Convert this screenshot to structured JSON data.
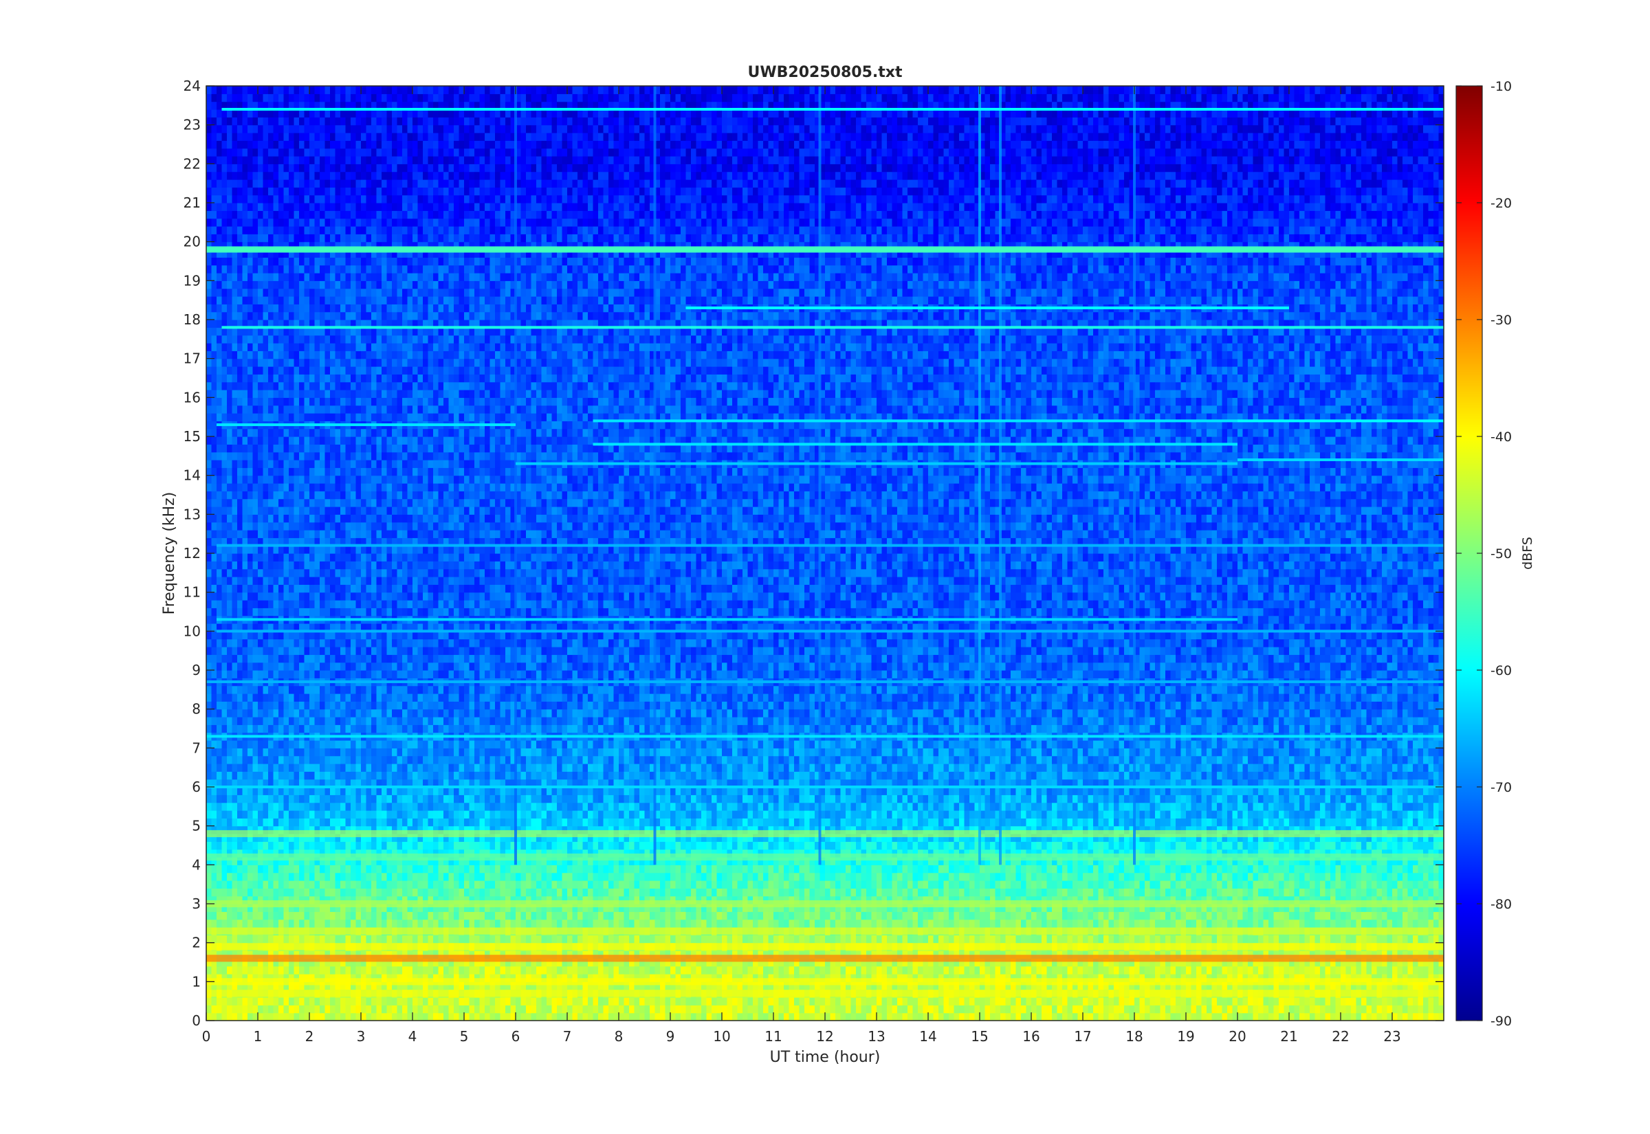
{
  "chart_data": {
    "type": "heatmap",
    "title": "UWB20250805.txt",
    "xlabel": "UT time (hour)",
    "ylabel": "Frequency (kHz)",
    "xlim": [
      0,
      24
    ],
    "ylim": [
      0,
      24
    ],
    "x_ticks": [
      "0",
      "1",
      "2",
      "3",
      "4",
      "5",
      "6",
      "7",
      "8",
      "9",
      "10",
      "11",
      "12",
      "13",
      "14",
      "15",
      "16",
      "17",
      "18",
      "19",
      "20",
      "21",
      "22",
      "23"
    ],
    "y_ticks": [
      "0",
      "1",
      "2",
      "3",
      "4",
      "5",
      "6",
      "7",
      "8",
      "9",
      "10",
      "11",
      "12",
      "13",
      "14",
      "15",
      "16",
      "17",
      "18",
      "19",
      "20",
      "21",
      "22",
      "23",
      "24"
    ],
    "colorbar": {
      "label": "dBFS",
      "range": [
        -90,
        -10
      ],
      "ticks": [
        "-90",
        "-80",
        "-70",
        "-60",
        "-50",
        "-40",
        "-30",
        "-20",
        "-10"
      ],
      "colormap": "jet"
    },
    "background_level_by_freq_khz": [
      {
        "f": 0,
        "dbfs": -44
      },
      {
        "f": 1,
        "dbfs": -44
      },
      {
        "f": 2,
        "dbfs": -46
      },
      {
        "f": 2.5,
        "dbfs": -50
      },
      {
        "f": 3,
        "dbfs": -52
      },
      {
        "f": 4,
        "dbfs": -57
      },
      {
        "f": 5,
        "dbfs": -64
      },
      {
        "f": 6,
        "dbfs": -68
      },
      {
        "f": 7,
        "dbfs": -69
      },
      {
        "f": 8,
        "dbfs": -71
      },
      {
        "f": 9,
        "dbfs": -72
      },
      {
        "f": 10,
        "dbfs": -73
      },
      {
        "f": 14,
        "dbfs": -73
      },
      {
        "f": 19,
        "dbfs": -74
      },
      {
        "f": 20.5,
        "dbfs": -77
      },
      {
        "f": 22,
        "dbfs": -80
      },
      {
        "f": 24,
        "dbfs": -80
      }
    ],
    "hot_bands": [
      {
        "f": 1.6,
        "dbfs": -30,
        "x_start": 0,
        "x_end": 24
      },
      {
        "f": 1.0,
        "dbfs": -40,
        "x_start": 0,
        "x_end": 24
      },
      {
        "f": 1.9,
        "dbfs": -40,
        "x_start": 0,
        "x_end": 24
      },
      {
        "f": 0.7,
        "dbfs": -41,
        "x_start": 0,
        "x_end": 24
      },
      {
        "f": 2.3,
        "dbfs": -43,
        "x_start": 0,
        "x_end": 24
      },
      {
        "f": 3.0,
        "dbfs": -46,
        "x_start": 0,
        "x_end": 24
      },
      {
        "f": 4.8,
        "dbfs": -48,
        "x_start": 0,
        "x_end": 24
      },
      {
        "f": 4.2,
        "dbfs": -52,
        "x_start": 0,
        "x_end": 24
      }
    ],
    "tonal_lines": [
      {
        "f": 19.8,
        "dbfs": -55,
        "x_start": 0,
        "x_end": 24
      },
      {
        "f": 18.3,
        "dbfs": -60,
        "x_start": 9.3,
        "x_end": 21
      },
      {
        "f": 17.8,
        "dbfs": -58,
        "x_start": 0.3,
        "x_end": 24
      },
      {
        "f": 23.4,
        "dbfs": -60,
        "x_start": 0.3,
        "x_end": 24
      },
      {
        "f": 15.3,
        "dbfs": -62,
        "x_start": 0.2,
        "x_end": 6
      },
      {
        "f": 15.4,
        "dbfs": -62,
        "x_start": 7.5,
        "x_end": 20
      },
      {
        "f": 15.4,
        "dbfs": -60,
        "x_start": 20,
        "x_end": 24
      },
      {
        "f": 14.8,
        "dbfs": -62,
        "x_start": 7.5,
        "x_end": 20
      },
      {
        "f": 14.4,
        "dbfs": -63,
        "x_start": 20,
        "x_end": 24
      },
      {
        "f": 14.3,
        "dbfs": -64,
        "x_start": 6,
        "x_end": 20
      },
      {
        "f": 12.2,
        "dbfs": -66,
        "x_start": 0.2,
        "x_end": 24
      },
      {
        "f": 10.3,
        "dbfs": -63,
        "x_start": 0.2,
        "x_end": 20
      },
      {
        "f": 10.0,
        "dbfs": -66,
        "x_start": 0.2,
        "x_end": 24
      },
      {
        "f": 8.7,
        "dbfs": -66,
        "x_start": 0,
        "x_end": 24
      },
      {
        "f": 7.3,
        "dbfs": -62,
        "x_start": 0,
        "x_end": 24
      },
      {
        "f": 6.0,
        "dbfs": -63,
        "x_start": 0,
        "x_end": 24
      }
    ],
    "vertical_features": [
      {
        "x": 15.0,
        "dbfs": -66
      },
      {
        "x": 15.4,
        "dbfs": -68
      },
      {
        "x": 11.9,
        "dbfs": -70
      },
      {
        "x": 18.0,
        "dbfs": -70
      },
      {
        "x": 8.7,
        "dbfs": -71
      },
      {
        "x": 6.0,
        "dbfs": -72
      }
    ]
  }
}
